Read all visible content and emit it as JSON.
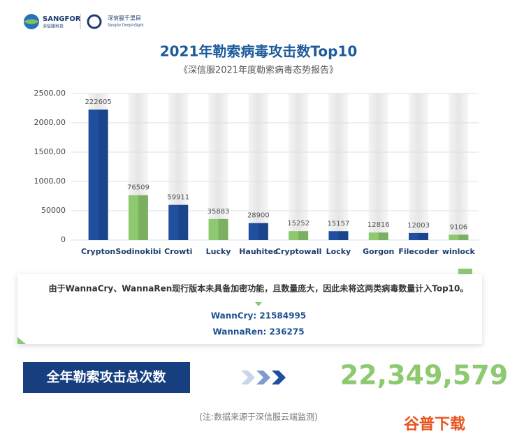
{
  "header": {
    "brand": "SANGFOR",
    "brand_cn": "深信服科技",
    "product_cn": "深信服千里目",
    "product": "Sangfor DeepInSight"
  },
  "chart_data": {
    "type": "bar",
    "title": "2021年勒索病毒攻击数Top10",
    "subtitle": "《深信服2021年度勒索病毒态势报告》",
    "categories": [
      "Crypton",
      "Sodinokibi",
      "Crowti",
      "Lucky",
      "Hauhitec",
      "Cryptowall",
      "Locky",
      "Gorgon",
      "Filecoder",
      "winlock"
    ],
    "values": [
      222605,
      76509,
      59911,
      35883,
      28900,
      15252,
      15157,
      12816,
      12003,
      9106
    ],
    "colors": [
      "#1f4f9e",
      "#8cc96f",
      "#1f4f9e",
      "#8cc96f",
      "#1f4f9e",
      "#8cc96f",
      "#1f4f9e",
      "#8cc96f",
      "#1f4f9e",
      "#8cc96f"
    ],
    "ylim": [
      0,
      250000
    ],
    "yticks": [
      0,
      50000,
      {
        "value": 100000,
        "label": "1000,00"
      },
      {
        "value": 150000,
        "label": "1500,00"
      },
      {
        "value": 200000,
        "label": "2000,00"
      },
      {
        "value": 250000,
        "label": "2500,00"
      }
    ],
    "grid": true
  },
  "note": {
    "text": "由于WannaCry、WannaRen现行版本未具备加密功能，且数量庞大，因此未将这两类病毒数量计入Top10。",
    "items": [
      "WannCry: 21584995",
      "WannaRen: 236275"
    ]
  },
  "total": {
    "label": "全年勒索攻击总次数",
    "value": "22,349,579"
  },
  "footer": {
    "source": "(注:数据来源于深信服云端监测)",
    "watermark": "谷普下载"
  }
}
